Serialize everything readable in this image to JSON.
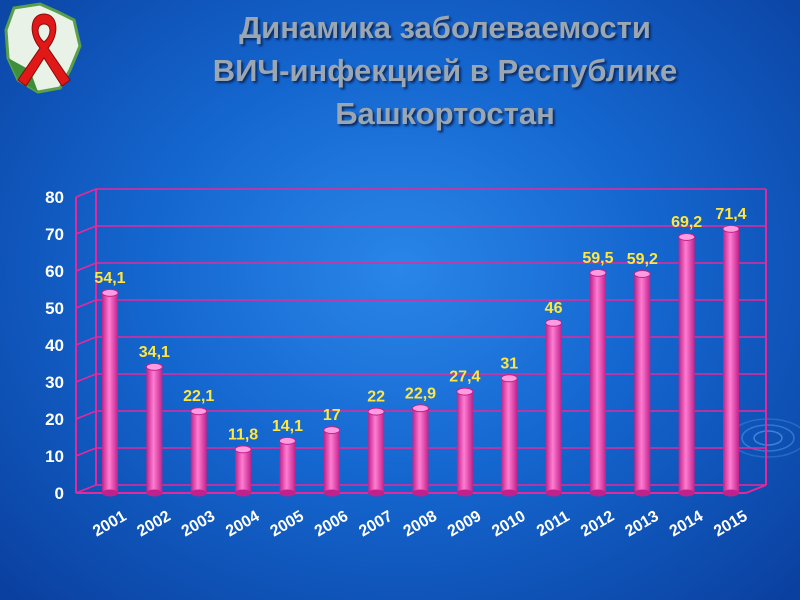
{
  "title": {
    "line1": "Динамика заболеваемости",
    "line2": "ВИЧ-инфекцией в Республике",
    "line3": "Башкортостан"
  },
  "colors": {
    "bar": "#ff5ec4",
    "bar_dark": "#c0218a",
    "grid": "#e8289a",
    "value_label": "#ffe640",
    "tick_label": "#ffffff",
    "title": "#9aa6b2"
  },
  "chart_data": {
    "type": "bar",
    "title": "Динамика заболеваемости ВИЧ-инфекцией в Республике Башкортостан",
    "categories": [
      "2001",
      "2002",
      "2003",
      "2004",
      "2005",
      "2006",
      "2007",
      "2008",
      "2009",
      "2010",
      "2011",
      "2012",
      "2013",
      "2014",
      "2015"
    ],
    "values": [
      54.1,
      34.1,
      22.1,
      11.8,
      14.1,
      17,
      22,
      22.9,
      27.4,
      31,
      46,
      59.5,
      59.2,
      69.2,
      71.4
    ],
    "value_labels": [
      "54,1",
      "34,1",
      "22,1",
      "11,8",
      "14,1",
      "17",
      "22",
      "22,9",
      "27,4",
      "31",
      "46",
      "59,5",
      "59,2",
      "69,2",
      "71,4"
    ],
    "ylim": [
      0,
      80
    ],
    "yticks": [
      "0",
      "10",
      "20",
      "30",
      "40",
      "50",
      "60",
      "70",
      "80"
    ],
    "xlabel": "",
    "ylabel": "",
    "grid": true,
    "legend": "none"
  }
}
